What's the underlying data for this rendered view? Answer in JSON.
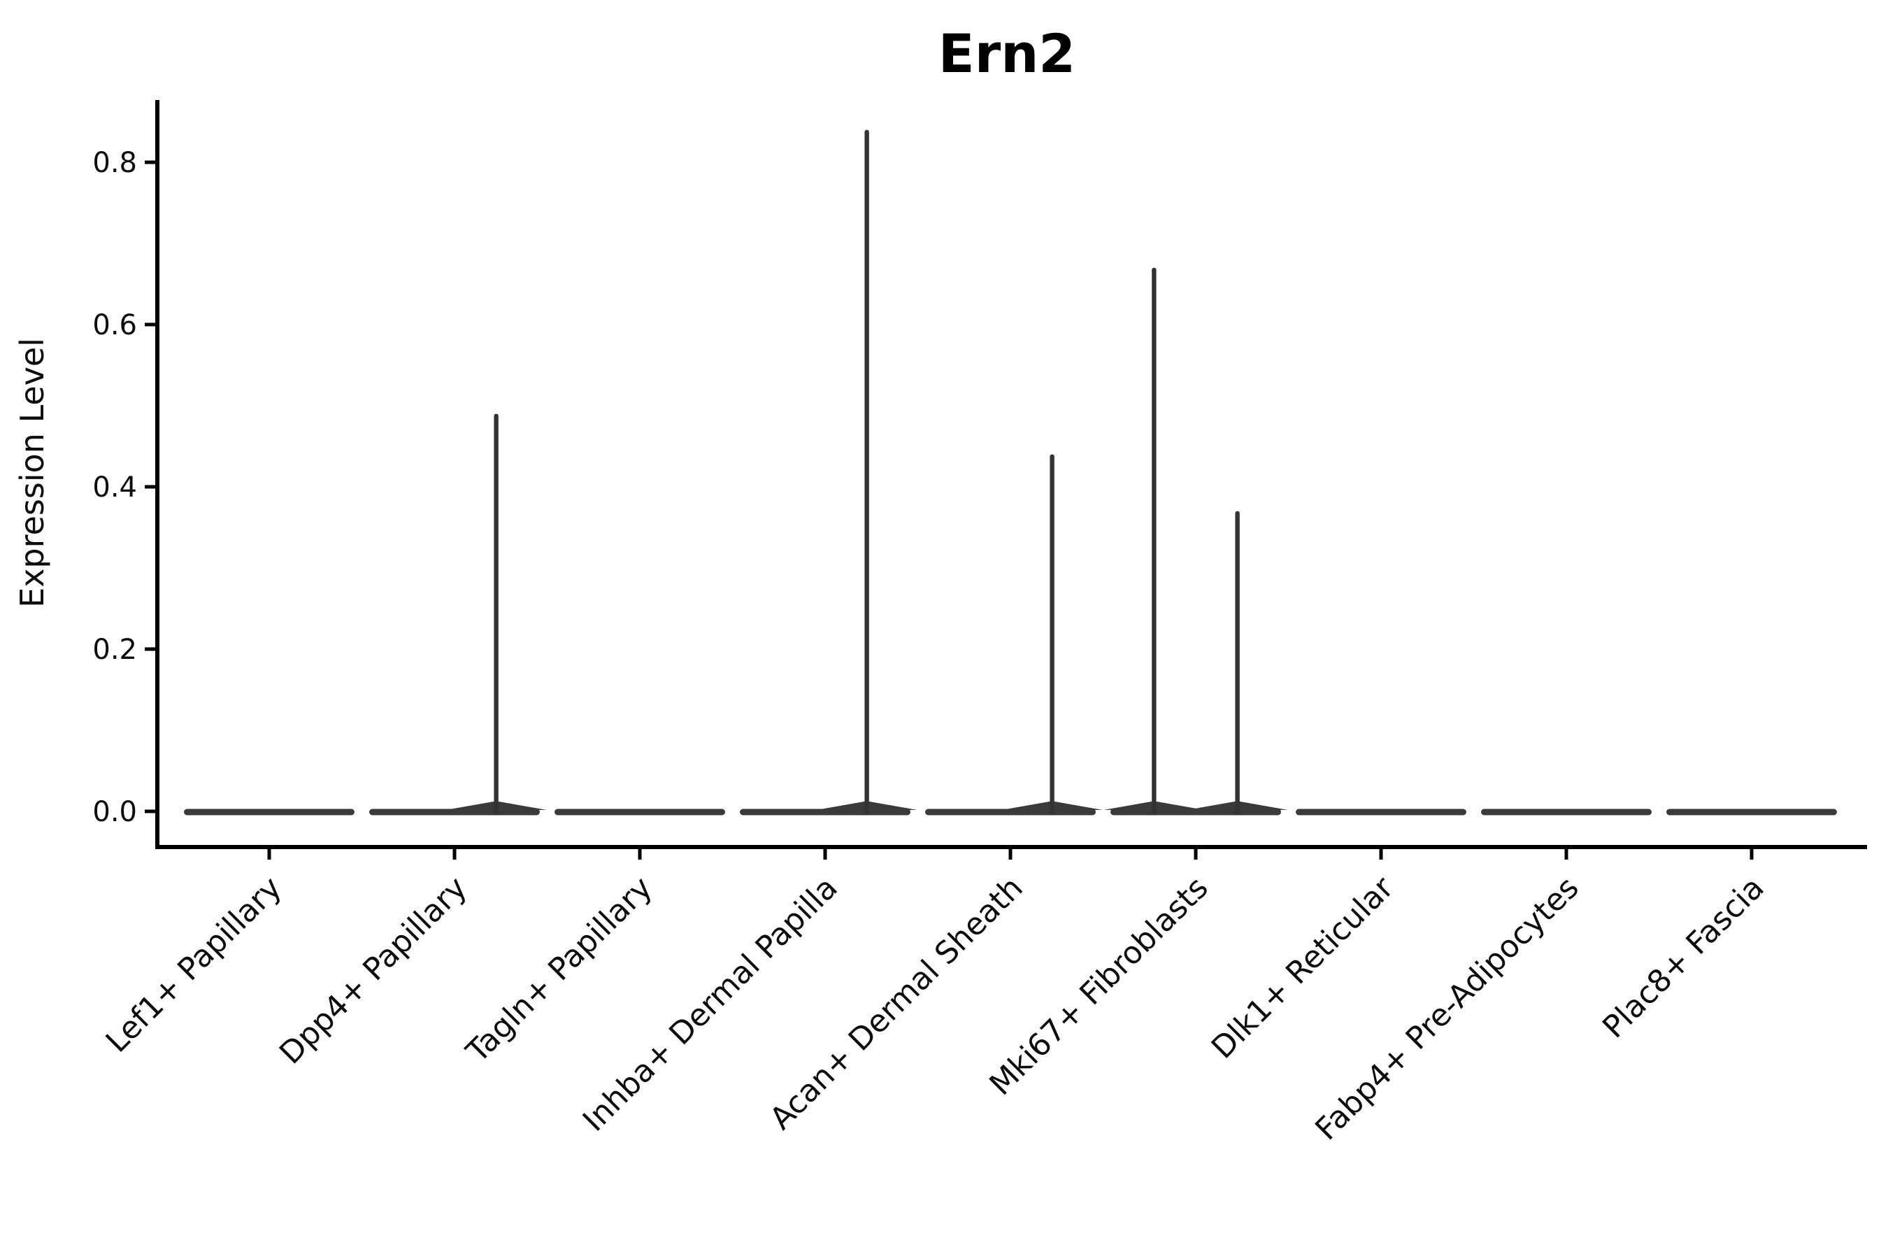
{
  "chart_data": {
    "type": "violin",
    "title": "Ern2",
    "ylabel": "Expression Level",
    "xlabel": "",
    "yticks": [
      0.0,
      0.2,
      0.4,
      0.6,
      0.8
    ],
    "ylim": [
      -0.045,
      0.88
    ],
    "grid": false,
    "legend": "none",
    "categories": [
      "Lef1+ Papillary",
      "Dpp4+ Papillary",
      "Tagln+ Papillary",
      "Inhba+ Dermal Papilla",
      "Acan+ Dermal Sheath",
      "Mki67+ Fibroblasts",
      "Dlk1+ Reticular",
      "Fabp4+ Pre-Adipocytes",
      "Plac8+ Fascia"
    ],
    "description": "Each category shows a flat violin body at expression 0; thin spikes rise to the max expression of dodged left/right sub-violins.",
    "series": [
      {
        "name": "left-subviolin",
        "dodge": -0.225,
        "max_expression": [
          0,
          0,
          0,
          0,
          0,
          0.67,
          0,
          0,
          0
        ]
      },
      {
        "name": "right-subviolin",
        "dodge": 0.225,
        "max_expression": [
          0,
          0.49,
          0,
          0.84,
          0.44,
          0.37,
          0,
          0,
          0
        ]
      }
    ],
    "zero_body_all_categories": true,
    "colors": {
      "violin_fill": "#3a3a3a",
      "spike": "#333333",
      "axis": "#000000",
      "text": "#0d0d0d",
      "background": "#ffffff"
    }
  }
}
